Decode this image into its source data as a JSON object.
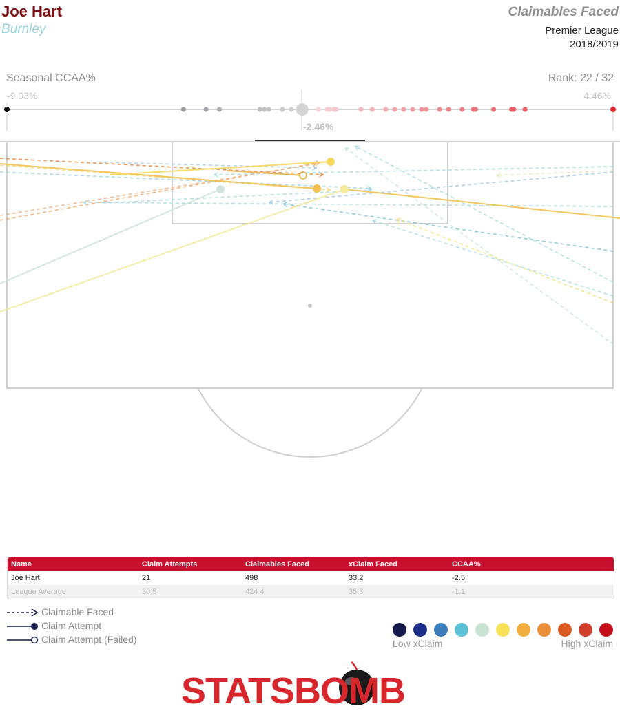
{
  "header": {
    "player": "Joe Hart",
    "team": "Burnley",
    "title": "Claimables Faced",
    "league": "Premier League",
    "season": "2018/2019"
  },
  "scale": {
    "title": "Seasonal CCAA%",
    "rank_label": "Rank: 22 / 32",
    "min_label": "-9.03%",
    "max_label": "4.46%",
    "avg_label": "-2.46%",
    "min": -9.03,
    "max": 4.46,
    "player_value": -2.46,
    "other_keepers": [
      -5.1,
      -4.6,
      -4.3,
      -3.4,
      -3.3,
      -3.2,
      -2.9,
      -2.7,
      -2.1,
      -1.9,
      -1.85,
      -1.75,
      -1.7,
      -1.15,
      -0.9,
      -0.6,
      -0.4,
      -0.2,
      0.0,
      0.2,
      0.3,
      0.6,
      0.8,
      1.1,
      1.35,
      1.4,
      1.8,
      2.2,
      2.25,
      2.5
    ]
  },
  "chart_data": {
    "type": "scatter",
    "title": "Claimables Faced",
    "xlim": [
      0,
      880
    ],
    "ylim": [
      0,
      360
    ],
    "claimables": [
      {
        "x1": 0,
        "y1": 230,
        "x2": 470,
        "y2": 254,
        "color": "#e8853a"
      },
      {
        "x1": 0,
        "y1": 240,
        "x2": 480,
        "y2": 276,
        "color": "#f2d977"
      },
      {
        "x1": 0,
        "y1": 320,
        "x2": 465,
        "y2": 236,
        "color": "#f1a766"
      },
      {
        "x1": 0,
        "y1": 313,
        "x2": 460,
        "y2": 238,
        "color": "#eeb184"
      },
      {
        "x1": 0,
        "y1": 250,
        "x2": 540,
        "y2": 274,
        "color": "#9fd3dc"
      },
      {
        "x1": 150,
        "y1": 236,
        "x2": 460,
        "y2": 244,
        "color": "#aacfe0"
      },
      {
        "x1": 890,
        "y1": 410,
        "x2": 515,
        "y2": 212,
        "color": "#a9dbe0"
      },
      {
        "x1": 890,
        "y1": 500,
        "x2": 500,
        "y2": 214,
        "color": "#c9e6d6"
      },
      {
        "x1": 890,
        "y1": 365,
        "x2": 410,
        "y2": 296,
        "color": "#7fc4d4"
      },
      {
        "x1": 890,
        "y1": 440,
        "x2": 575,
        "y2": 318,
        "color": "#f2e277"
      },
      {
        "x1": 890,
        "y1": 430,
        "x2": 540,
        "y2": 320,
        "color": "#a9dbe0"
      },
      {
        "x1": 890,
        "y1": 242,
        "x2": 310,
        "y2": 254,
        "color": "#a9dbe0"
      },
      {
        "x1": 890,
        "y1": 248,
        "x2": 720,
        "y2": 255,
        "color": "#e3eec3"
      },
      {
        "x1": 890,
        "y1": 250,
        "x2": 390,
        "y2": 294,
        "color": "#9fc7e2"
      },
      {
        "x1": 150,
        "y1": 295,
        "x2": 540,
        "y2": 276,
        "color": "#a9dbe0"
      },
      {
        "x1": 890,
        "y1": 300,
        "x2": 120,
        "y2": 294,
        "color": "#a9dbe0"
      }
    ],
    "attempts": [
      {
        "x1": 0,
        "y1": 238,
        "x2": 460,
        "y2": 274,
        "color": "#f2c14e",
        "failed": false
      },
      {
        "x1": 160,
        "y1": 254,
        "x2": 480,
        "y2": 235,
        "color": "#f9d65c",
        "failed": false
      },
      {
        "x1": 900,
        "y1": 317,
        "x2": 500,
        "y2": 275,
        "color": "#f2c14e",
        "failed": false
      },
      {
        "x1": 0,
        "y1": 453,
        "x2": 500,
        "y2": 275,
        "color": "#f5eaa0",
        "failed": false
      },
      {
        "x1": 0,
        "y1": 412,
        "x2": 320,
        "y2": 275,
        "color": "#cfe4da",
        "failed": false
      },
      {
        "x1": 330,
        "y1": 248,
        "x2": 440,
        "y2": 255,
        "color": "#e8b34a",
        "failed": true
      }
    ]
  },
  "table": {
    "headers": [
      "Name",
      "Claim Attempts",
      "Claimables Faced",
      "xClaim Faced",
      "CCAA%"
    ],
    "rows": [
      [
        "Joe Hart",
        "21",
        "498",
        "33.2",
        "-2.5"
      ],
      [
        "League Average",
        "30.5",
        "424.4",
        "35.3",
        "-1.1"
      ]
    ]
  },
  "legend": {
    "claimable": "Claimable Faced",
    "attempt": "Claim Attempt",
    "failed": "Claim Attempt (Failed)",
    "low": "Low xClaim",
    "high": "High xClaim",
    "colors": [
      "#141a4c",
      "#1d2e8a",
      "#3b7dbb",
      "#5bc0d5",
      "#c8e3d2",
      "#f8e15a",
      "#f2ae3f",
      "#ec8f3b",
      "#da5a22",
      "#d13e2d",
      "#c4101a"
    ]
  },
  "logo": {
    "text": "STATSBOMB"
  }
}
